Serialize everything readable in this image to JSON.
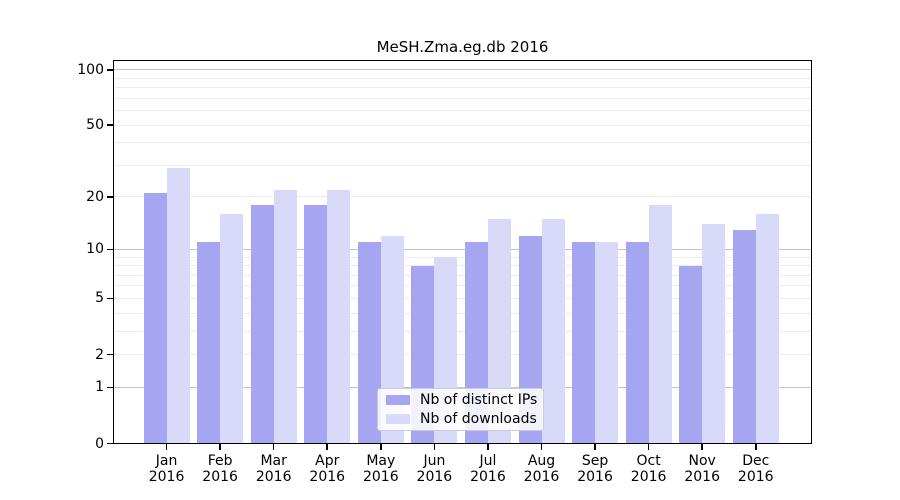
{
  "title": "MeSH.Zma.eg.db 2016",
  "chart_data": {
    "type": "bar",
    "title": "MeSH.Zma.eg.db 2016",
    "xlabel": "",
    "ylabel": "",
    "yscale": "log1p",
    "ylim": [
      0,
      113
    ],
    "grid": true,
    "legend_position": "inside-bottom-center",
    "categories": [
      {
        "month": "Jan",
        "year": "2016"
      },
      {
        "month": "Feb",
        "year": "2016"
      },
      {
        "month": "Mar",
        "year": "2016"
      },
      {
        "month": "Apr",
        "year": "2016"
      },
      {
        "month": "May",
        "year": "2016"
      },
      {
        "month": "Jun",
        "year": "2016"
      },
      {
        "month": "Jul",
        "year": "2016"
      },
      {
        "month": "Aug",
        "year": "2016"
      },
      {
        "month": "Sep",
        "year": "2016"
      },
      {
        "month": "Oct",
        "year": "2016"
      },
      {
        "month": "Nov",
        "year": "2016"
      },
      {
        "month": "Dec",
        "year": "2016"
      }
    ],
    "series": [
      {
        "name": "Nb of distinct IPs",
        "color": "#a5a5f2",
        "values": [
          21,
          11,
          18,
          18,
          11,
          8,
          11,
          12,
          11,
          11,
          8,
          13
        ]
      },
      {
        "name": "Nb of downloads",
        "color": "#d9d9f9",
        "values": [
          29,
          16,
          22,
          22,
          12,
          9,
          15,
          15,
          11,
          18,
          14,
          16
        ]
      }
    ],
    "yticks": [
      {
        "value": 100,
        "label": "100"
      },
      {
        "value": 50,
        "label": "50"
      },
      {
        "value": 20,
        "label": "20"
      },
      {
        "value": 10,
        "label": "10"
      },
      {
        "value": 5,
        "label": "5"
      },
      {
        "value": 2,
        "label": "2"
      },
      {
        "value": 1,
        "label": "1"
      },
      {
        "value": 0,
        "label": "0"
      }
    ],
    "major_gridlines": [
      1,
      10,
      100
    ],
    "minor_gridlines": [
      2,
      3,
      4,
      5,
      6,
      7,
      8,
      9,
      20,
      30,
      40,
      50,
      60,
      70,
      80,
      90
    ],
    "grid_major_color": "#c3c3c3",
    "grid_minor_color": "#ececec",
    "frame_color": "#000000"
  }
}
